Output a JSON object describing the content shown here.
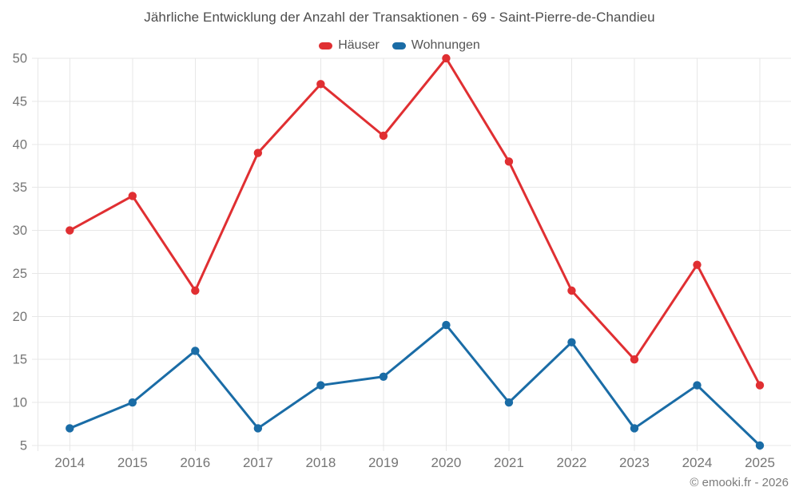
{
  "chart": {
    "title": "Jährliche Entwicklung der Anzahl der Transaktionen - 69 - Saint-Pierre-de-Chandieu"
  },
  "chart_data": {
    "type": "line",
    "title": "Jährliche Entwicklung der Anzahl der Transaktionen - 69 - Saint-Pierre-de-Chandieu",
    "categories": [
      "2014",
      "2015",
      "2016",
      "2017",
      "2018",
      "2019",
      "2020",
      "2021",
      "2022",
      "2023",
      "2024",
      "2025"
    ],
    "series": [
      {
        "name": "Häuser",
        "color": "#e02f32",
        "values": [
          30,
          34,
          23,
          39,
          47,
          41,
          50,
          38,
          23,
          15,
          26,
          12
        ]
      },
      {
        "name": "Wohnungen",
        "color": "#1a6ca6",
        "values": [
          7,
          10,
          16,
          7,
          12,
          13,
          19,
          10,
          17,
          7,
          12,
          5
        ]
      }
    ],
    "y_ticks": [
      5,
      10,
      15,
      20,
      25,
      30,
      35,
      40,
      45,
      50
    ],
    "ylim": [
      5,
      50
    ],
    "xlabel": "",
    "ylabel": "",
    "grid": true,
    "legend_position": "top"
  },
  "footer": {
    "text": "© emooki.fr - 2026"
  },
  "colors": {
    "grid": "#e7e7e7",
    "axis_text": "#757575",
    "title_text": "#4d4d4d",
    "legend_text": "#555555",
    "background": "#ffffff"
  }
}
